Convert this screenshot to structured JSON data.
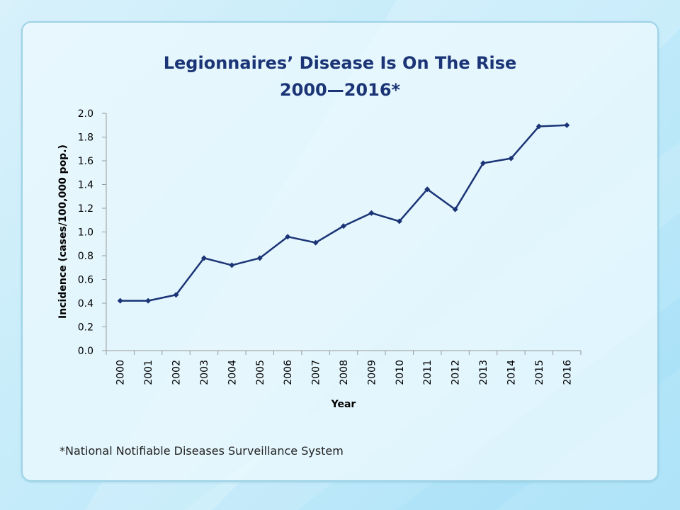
{
  "chart_data": {
    "type": "line",
    "title": "Legionnaires’ Disease Is On The Rise",
    "subtitle": "2000—2016*",
    "xlabel": "Year",
    "ylabel": "Incidence (cases/100,000 pop.)",
    "ylim": [
      0,
      2.0
    ],
    "yticks": [
      "0.0",
      "0.2",
      "0.4",
      "0.6",
      "0.8",
      "1.0",
      "1.2",
      "1.4",
      "1.6",
      "1.8",
      "2.0"
    ],
    "categories": [
      "2000",
      "2001",
      "2002",
      "2003",
      "2004",
      "2005",
      "2006",
      "2007",
      "2008",
      "2009",
      "2010",
      "2011",
      "2012",
      "2013",
      "2014",
      "2015",
      "2016"
    ],
    "series": [
      {
        "values": [
          0.42,
          0.42,
          0.47,
          0.78,
          0.72,
          0.78,
          0.96,
          0.91,
          1.05,
          1.16,
          1.09,
          1.36,
          1.19,
          1.58,
          1.62,
          1.89,
          1.9
        ]
      }
    ],
    "line_color": "#1a3476",
    "grid": false,
    "legend": "none"
  },
  "footnote": "*National Notifiable Diseases Surveillance System"
}
